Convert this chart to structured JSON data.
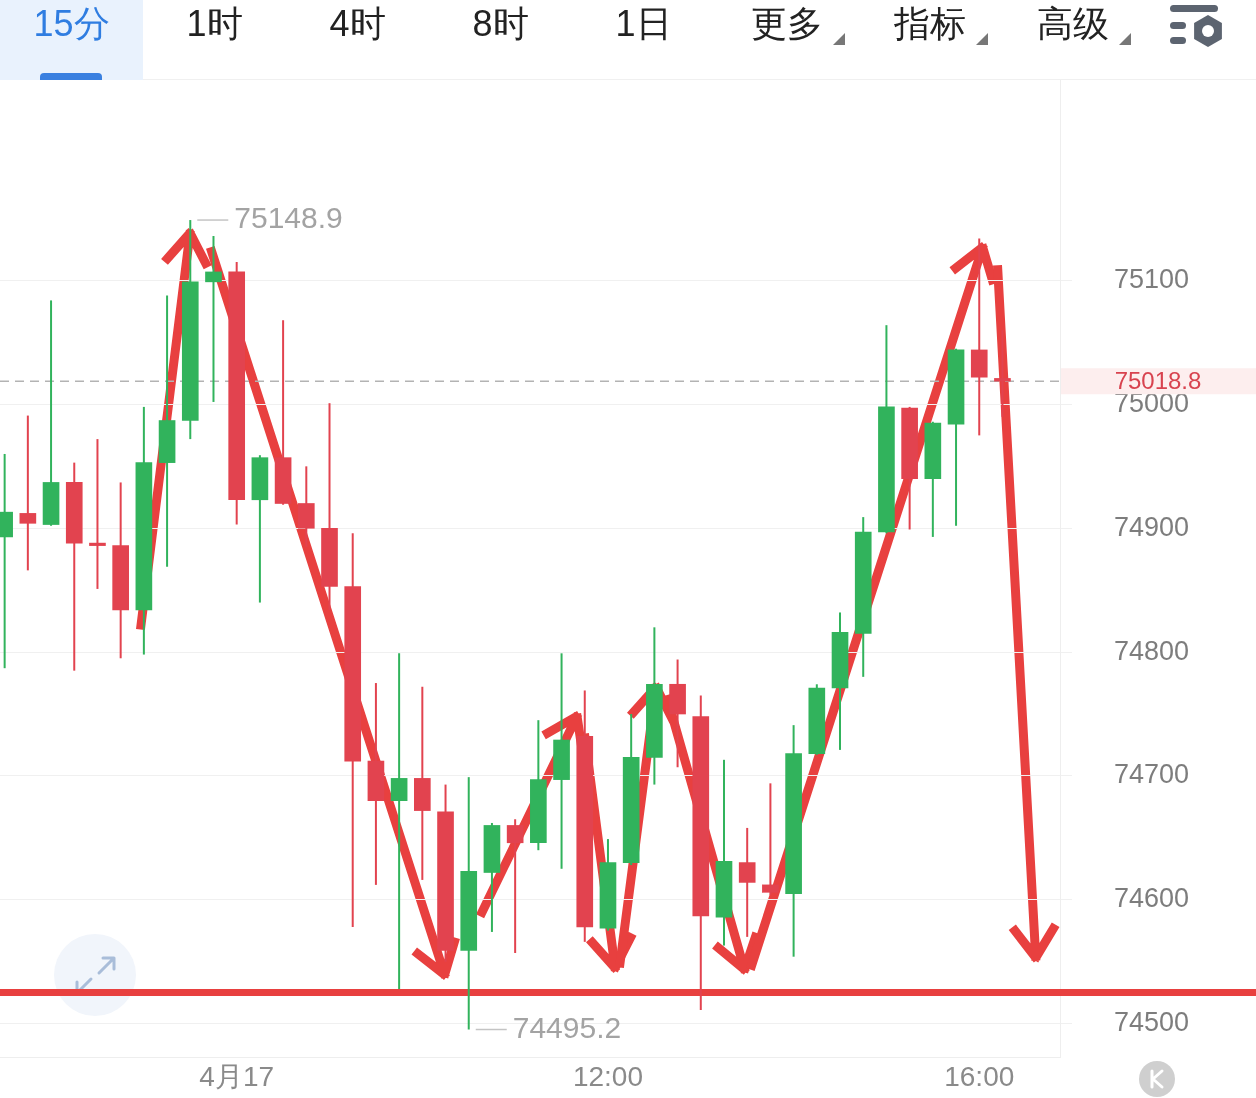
{
  "chart_data": {
    "type": "candlestick",
    "annotations": [
      "15分",
      "1时",
      "4时",
      "8时",
      "1日",
      "更多",
      "指标",
      "高级",
      {
        "text": "75148.9",
        "x": 7.5,
        "y": 75148.9
      },
      {
        "text": "74495.2",
        "x": 10.5,
        "y": 74495.2
      }
    ],
    "x": [
      5.5,
      5.75,
      6,
      6.25,
      6.5,
      6.75,
      7,
      7.25,
      7.5,
      7.75,
      8,
      8.25,
      8.5,
      8.75,
      9,
      9.25,
      9.5,
      9.75,
      10,
      10.25,
      10.5,
      10.75,
      11,
      11.25,
      11.5,
      11.75,
      12,
      12.25,
      12.5,
      12.75,
      13,
      13.25,
      13.5,
      13.75,
      14,
      14.25,
      14.5,
      14.75,
      15,
      15.25,
      15.5,
      15.75,
      16,
      16.25
    ],
    "ohlc": [
      [
        74893,
        74960,
        74787,
        74913
      ],
      [
        74912,
        74991,
        74866,
        74904
      ],
      [
        74903,
        75084,
        74902,
        74937
      ],
      [
        74937,
        74953,
        74785,
        74888
      ],
      [
        74888,
        74972,
        74851,
        74886
      ],
      [
        74886,
        74937,
        74795,
        74834
      ],
      [
        74834,
        74998,
        74798,
        74953
      ],
      [
        74953,
        75088,
        74869,
        74987
      ],
      [
        74987,
        75148.9,
        74972,
        75099
      ],
      [
        75099,
        75136,
        75002,
        75107
      ],
      [
        75107,
        75115,
        74903,
        74923
      ],
      [
        74923,
        74959,
        74840,
        74957
      ],
      [
        74957,
        75068,
        74919,
        74920
      ],
      [
        74920,
        74950,
        74885,
        74900
      ],
      [
        74900,
        75001,
        74834,
        74853
      ],
      [
        74853,
        74896,
        74578,
        74712
      ],
      [
        74712,
        74775,
        74612,
        74680
      ],
      [
        74680,
        74799,
        74528,
        74698
      ],
      [
        74698,
        74772,
        74616,
        74672
      ],
      [
        74671,
        74693,
        74550,
        74559
      ],
      [
        74559,
        74699,
        74495.2,
        74623
      ],
      [
        74622,
        74662,
        74574,
        74660
      ],
      [
        74660,
        74665,
        74557,
        74646
      ],
      [
        74646,
        74745,
        74640,
        74697
      ],
      [
        74697,
        74799,
        74625,
        74729
      ],
      [
        74732,
        74769,
        74566,
        74578
      ],
      [
        74577,
        74649,
        74575,
        74630
      ],
      [
        74630,
        74750,
        74628,
        74715
      ],
      [
        74715,
        74820,
        74693,
        74774
      ],
      [
        74774,
        74794,
        74707,
        74750
      ],
      [
        74748,
        74765,
        74511,
        74587
      ],
      [
        74586,
        74713,
        74563,
        74631
      ],
      [
        74630,
        74658,
        74570,
        74614
      ],
      [
        74612,
        74694,
        74604,
        74606
      ],
      [
        74605,
        74741,
        74554,
        74718
      ],
      [
        74718,
        74774,
        74717,
        74771
      ],
      [
        74771,
        74832,
        74721,
        74816
      ],
      [
        74815,
        74909,
        74780,
        74897
      ],
      [
        74897,
        75064,
        74896,
        74998
      ],
      [
        74997,
        74998,
        74899,
        74940
      ],
      [
        74940,
        74986,
        74893,
        74985
      ],
      [
        74984,
        75045,
        74902,
        75044
      ],
      [
        75044,
        75134,
        74975,
        75022
      ],
      [
        75021,
        75060,
        74990,
        75018.8
      ]
    ],
    "colors": [
      "#31b35c",
      "#e2434f",
      "#31b35c",
      "#e2434f",
      "#e2434f",
      "#e2434f",
      "#31b35c",
      "#31b35c",
      "#31b35c",
      "#31b35c",
      "#e2434f",
      "#31b35c",
      "#e2434f",
      "#e2434f",
      "#e2434f",
      "#e2434f",
      "#e2434f",
      "#31b35c",
      "#e2434f",
      "#e2434f",
      "#31b35c",
      "#31b35c",
      "#e2434f",
      "#31b35c",
      "#31b35c",
      "#e2434f",
      "#31b35c",
      "#31b35c",
      "#31b35c",
      "#e2434f",
      "#e2434f",
      "#31b35c",
      "#e2434f",
      "#e2434f",
      "#31b35c",
      "#31b35c",
      "#31b35c",
      "#31b35c",
      "#31b35c",
      "#e2434f",
      "#31b35c",
      "#31b35c",
      "#e2434f",
      "#e2434f"
    ],
    "xlim": [
      5.45,
      16.87
    ],
    "xticks": [
      {
        "value": 8,
        "label": "4月17"
      },
      {
        "value": 12,
        "label": "12:00"
      },
      {
        "value": 16,
        "label": "16:00"
      }
    ],
    "ylim": [
      74473,
      75262
    ],
    "yticks": [
      74500,
      74600,
      74700,
      74800,
      74900,
      75000,
      75100
    ],
    "ref_lines": [
      {
        "axis": "y",
        "value": 75018.8,
        "label": "75018.8",
        "color": "#b3b3b3",
        "line_style": "dashed"
      },
      {
        "axis": "y",
        "value": 74525,
        "color": "#e8403f",
        "line_style": "solid"
      }
    ],
    "grid": "y"
  }
}
